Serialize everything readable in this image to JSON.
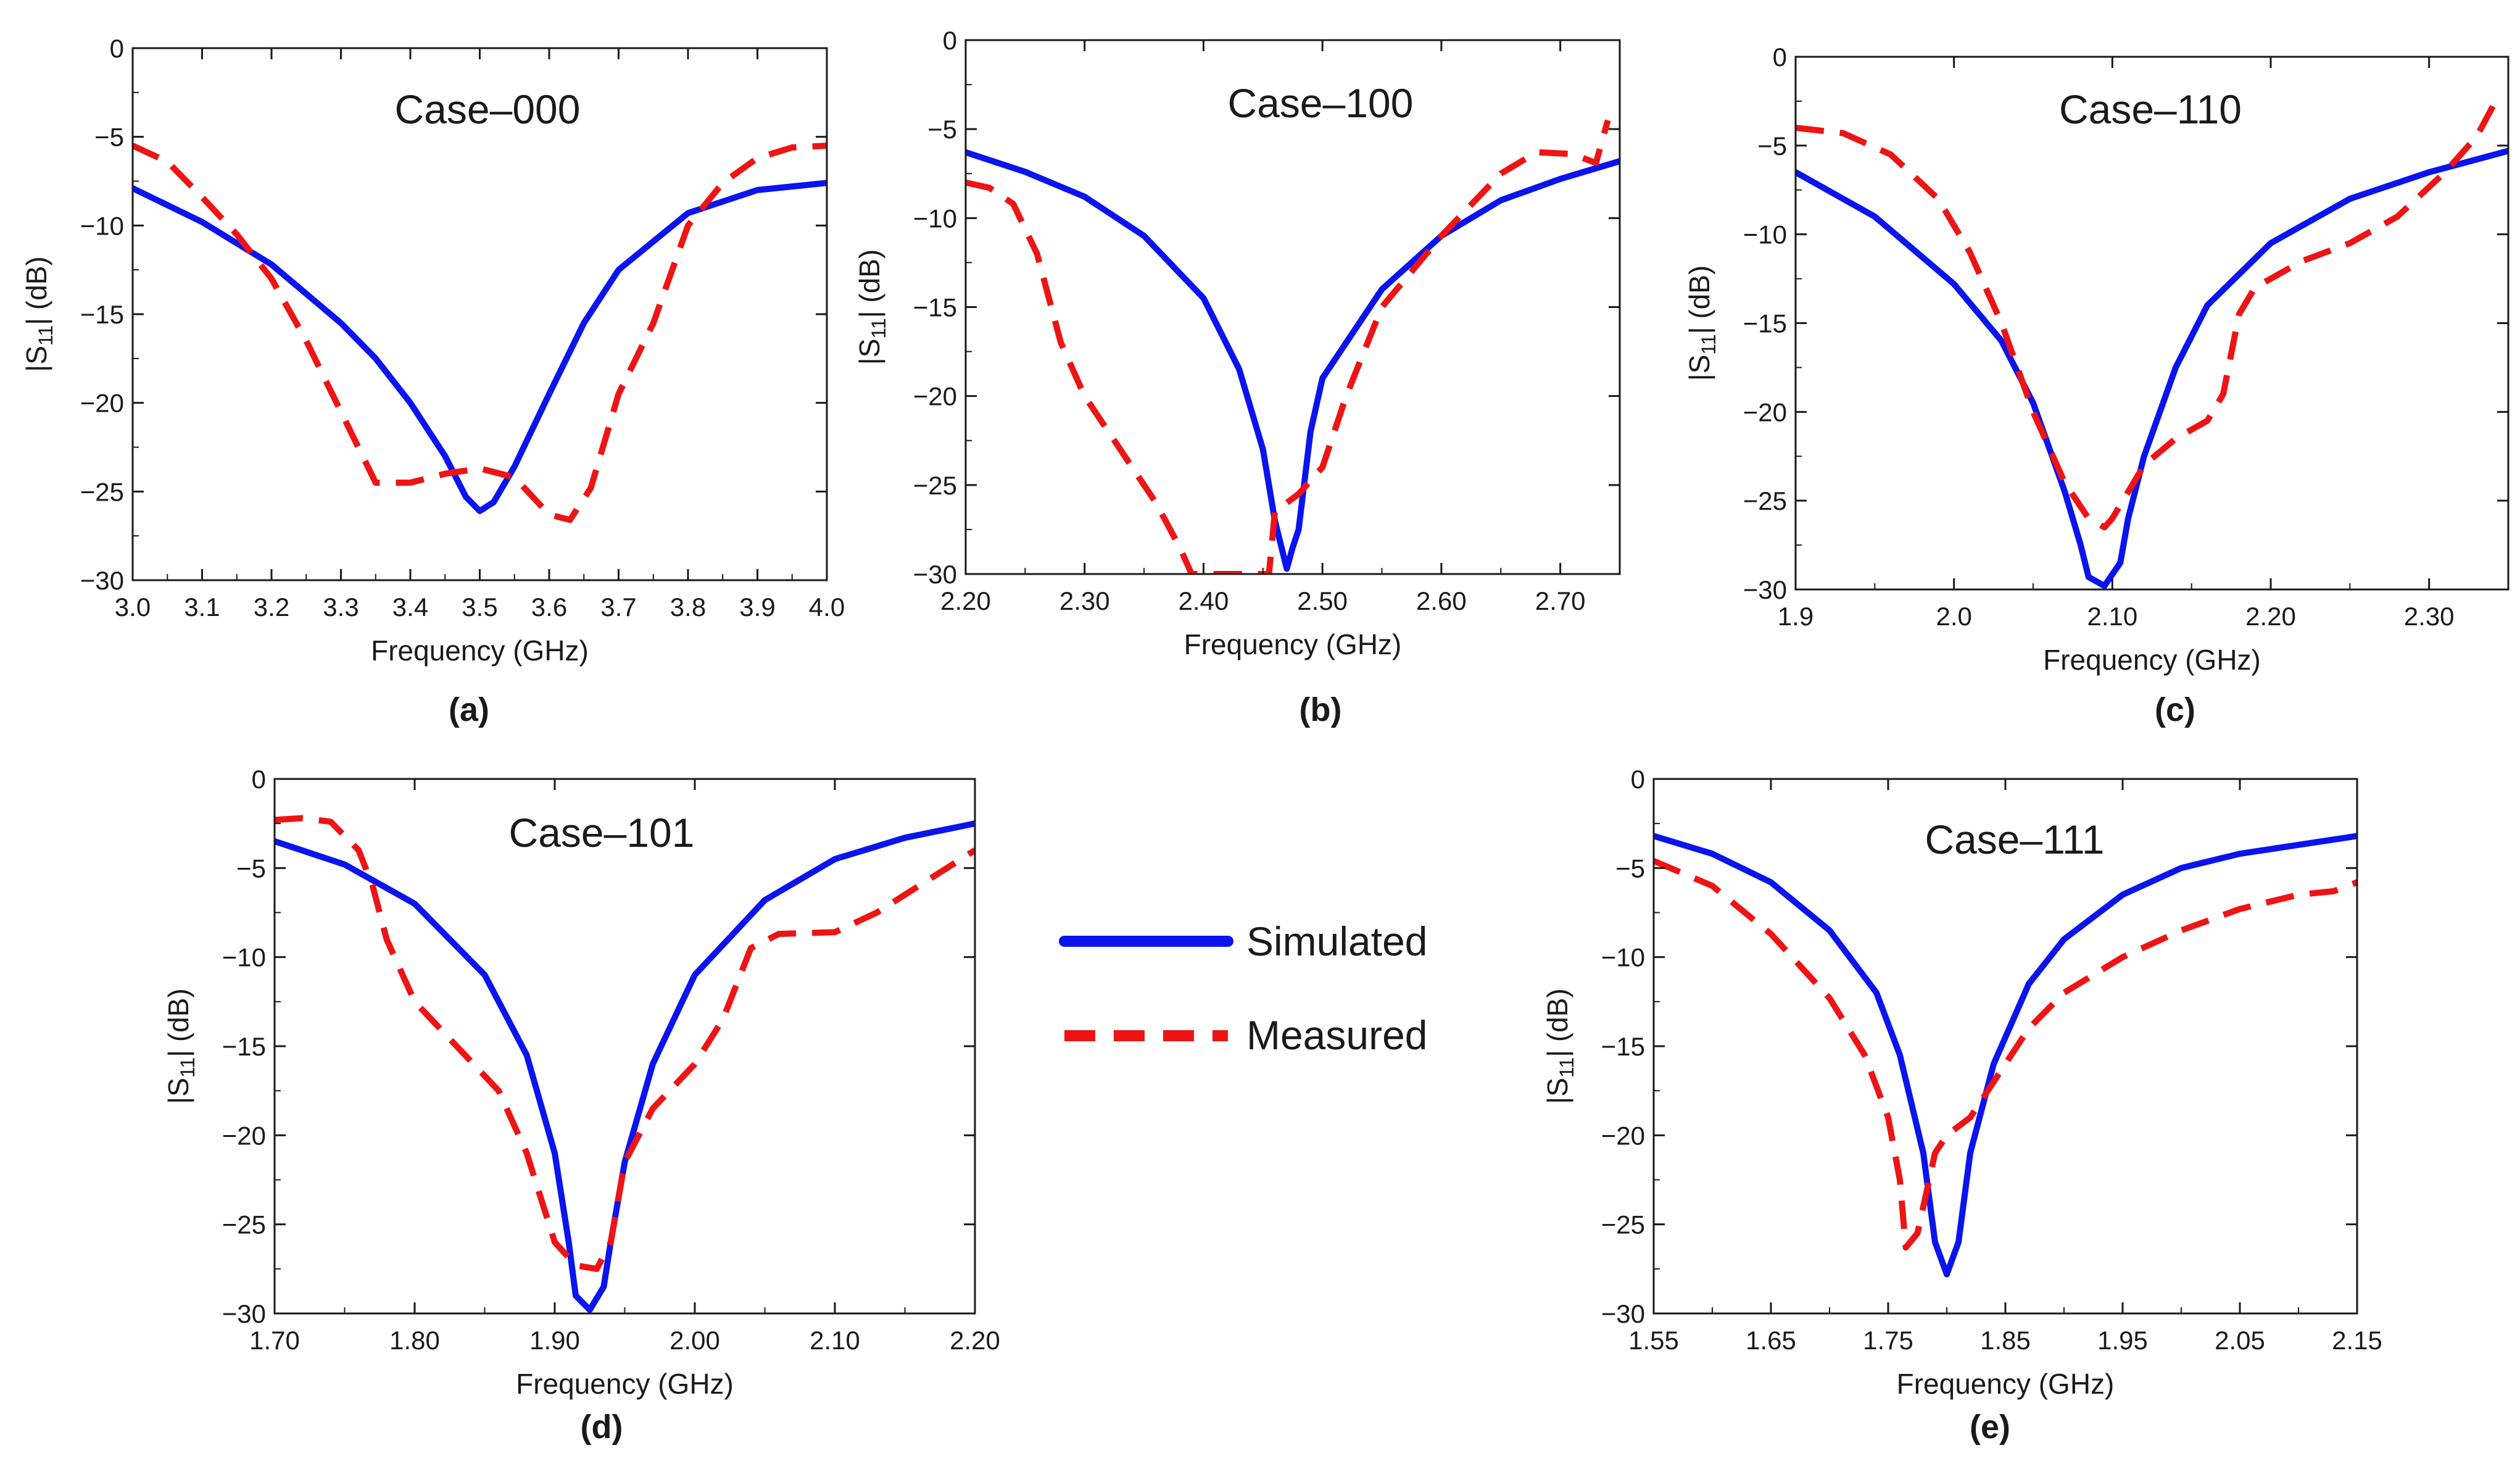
{
  "colors": {
    "simulated": "#0a14ee",
    "measured": "#ee1414",
    "axis": "#1a1a1a"
  },
  "legend": {
    "simulated_label": "Simulated",
    "measured_label": "Measured"
  },
  "chart_data": [
    {
      "type": "line",
      "panel_label": "(a)",
      "title": "Case–000",
      "xlabel": "Frequency (GHz)",
      "ylabel": "|S11| (dB)",
      "xlim": [
        3.0,
        4.0
      ],
      "ylim": [
        -30,
        0
      ],
      "xticks": [
        3.0,
        3.1,
        3.2,
        3.3,
        3.4,
        3.5,
        3.6,
        3.7,
        3.8,
        3.9,
        4.0
      ],
      "xtick_labels": [
        "3.0",
        "3.1",
        "3.2",
        "3.3",
        "3.4",
        "3.5",
        "3.6",
        "3.7",
        "3.8",
        "3.9",
        "4.0"
      ],
      "yticks": [
        0,
        -5,
        -10,
        -15,
        -20,
        -25,
        -30
      ],
      "ytick_labels": [
        "0",
        "−5",
        "−10",
        "−15",
        "−20",
        "−25",
        "−30"
      ],
      "grid": false,
      "series": [
        {
          "name": "Simulated",
          "x": [
            3.0,
            3.1,
            3.2,
            3.3,
            3.35,
            3.4,
            3.45,
            3.48,
            3.5,
            3.52,
            3.55,
            3.6,
            3.65,
            3.7,
            3.8,
            3.9,
            4.0
          ],
          "y": [
            -7.9,
            -9.8,
            -12.2,
            -15.5,
            -17.5,
            -20.0,
            -23.0,
            -25.3,
            -26.1,
            -25.6,
            -23.6,
            -19.5,
            -15.5,
            -12.5,
            -9.3,
            -8.0,
            -7.6
          ]
        },
        {
          "name": "Measured",
          "x": [
            3.0,
            3.05,
            3.1,
            3.15,
            3.2,
            3.25,
            3.3,
            3.35,
            3.4,
            3.45,
            3.5,
            3.55,
            3.6,
            3.63,
            3.66,
            3.7,
            3.75,
            3.8,
            3.85,
            3.9,
            3.95,
            4.0
          ],
          "y": [
            -5.5,
            -6.4,
            -8.4,
            -10.5,
            -13.0,
            -16.5,
            -20.5,
            -24.5,
            -24.5,
            -24.0,
            -23.7,
            -24.2,
            -26.3,
            -26.6,
            -24.8,
            -19.5,
            -15.5,
            -10.0,
            -7.6,
            -6.2,
            -5.6,
            -5.5
          ]
        }
      ]
    },
    {
      "type": "line",
      "panel_label": "(b)",
      "title": "Case–100",
      "xlabel": "Frequency (GHz)",
      "ylabel": "|S11| (dB)",
      "xlim": [
        2.2,
        2.75
      ],
      "ylim": [
        -30,
        0
      ],
      "xticks": [
        2.2,
        2.3,
        2.4,
        2.5,
        2.6,
        2.7
      ],
      "xtick_labels": [
        "2.20",
        "2.30",
        "2.40",
        "2.50",
        "2.60",
        "2.70"
      ],
      "yticks": [
        0,
        -5,
        -10,
        -15,
        -20,
        -25,
        -30
      ],
      "ytick_labels": [
        "0",
        "−5",
        "−10",
        "−15",
        "−20",
        "−25",
        "−30"
      ],
      "grid": false,
      "series": [
        {
          "name": "Simulated",
          "x": [
            2.2,
            2.25,
            2.3,
            2.35,
            2.4,
            2.43,
            2.45,
            2.46,
            2.47,
            2.475,
            2.48,
            2.49,
            2.5,
            2.55,
            2.6,
            2.65,
            2.7,
            2.75
          ],
          "y": [
            -6.3,
            -7.4,
            -8.8,
            -11.0,
            -14.5,
            -18.5,
            -23.0,
            -27.0,
            -29.7,
            -28.5,
            -27.5,
            -22.0,
            -19.0,
            -14.0,
            -11.0,
            -9.0,
            -7.8,
            -6.8
          ]
        },
        {
          "name": "Measured",
          "x": [
            2.2,
            2.22,
            2.24,
            2.26,
            2.28,
            2.3,
            2.32,
            2.34,
            2.36,
            2.38,
            2.39,
            2.4,
            2.455,
            2.46,
            2.48,
            2.5,
            2.52,
            2.55,
            2.6,
            2.65,
            2.68,
            2.71,
            2.73,
            2.74
          ],
          "y": [
            -8.0,
            -8.3,
            -9.2,
            -12.0,
            -17.0,
            -20.0,
            -22.0,
            -24.0,
            -26.0,
            -28.5,
            -30.0,
            -30.0,
            -30.0,
            -26.5,
            -25.5,
            -24.0,
            -20.0,
            -15.0,
            -11.0,
            -7.5,
            -6.3,
            -6.4,
            -6.9,
            -4.5
          ]
        }
      ]
    },
    {
      "type": "line",
      "panel_label": "(c)",
      "title": "Case–110",
      "xlabel": "Frequency (GHz)",
      "ylabel": "|S11| (dB)",
      "xlim": [
        1.9,
        2.35
      ],
      "ylim": [
        -30,
        0
      ],
      "xticks": [
        1.9,
        2.0,
        2.1,
        2.2,
        2.3
      ],
      "xtick_labels": [
        "1.9",
        "2.0",
        "2.10",
        "2.20",
        "2.30"
      ],
      "yticks": [
        0,
        -5,
        -10,
        -15,
        -20,
        -25,
        -30
      ],
      "ytick_labels": [
        "0",
        "−5",
        "−10",
        "−15",
        "−20",
        "−25",
        "−30"
      ],
      "grid": false,
      "series": [
        {
          "name": "Simulated",
          "x": [
            1.9,
            1.95,
            2.0,
            2.03,
            2.05,
            2.07,
            2.08,
            2.085,
            2.095,
            2.105,
            2.11,
            2.12,
            2.14,
            2.16,
            2.2,
            2.25,
            2.3,
            2.35
          ],
          "y": [
            -6.5,
            -9.0,
            -12.8,
            -16.0,
            -19.5,
            -24.5,
            -27.5,
            -29.3,
            -29.8,
            -28.5,
            -26.0,
            -22.5,
            -17.5,
            -14.0,
            -10.5,
            -8.0,
            -6.5,
            -5.3
          ]
        },
        {
          "name": "Measured",
          "x": [
            1.9,
            1.93,
            1.96,
            1.99,
            2.01,
            2.03,
            2.05,
            2.07,
            2.085,
            2.095,
            2.1,
            2.12,
            2.14,
            2.16,
            2.17,
            2.18,
            2.19,
            2.22,
            2.25,
            2.28,
            2.31,
            2.33,
            2.345
          ],
          "y": [
            -4.0,
            -4.3,
            -5.5,
            -8.0,
            -11.0,
            -15.0,
            -20.0,
            -24.0,
            -26.0,
            -26.5,
            -26.0,
            -23.0,
            -21.5,
            -20.5,
            -19.0,
            -14.5,
            -13.0,
            -11.5,
            -10.5,
            -9.0,
            -6.5,
            -4.5,
            -2.0
          ]
        }
      ]
    },
    {
      "type": "line",
      "panel_label": "(d)",
      "title": "Case–101",
      "xlabel": "Frequency (GHz)",
      "ylabel": "|S11| (dB)",
      "xlim": [
        1.7,
        2.2
      ],
      "ylim": [
        -30,
        0
      ],
      "xticks": [
        1.7,
        1.8,
        1.9,
        2.0,
        2.1,
        2.2
      ],
      "xtick_labels": [
        "1.70",
        "1.80",
        "1.90",
        "2.00",
        "2.10",
        "2.20"
      ],
      "yticks": [
        0,
        -5,
        -10,
        -15,
        -20,
        -25,
        -30
      ],
      "ytick_labels": [
        "0",
        "−5",
        "−10",
        "−15",
        "−20",
        "−25",
        "−30"
      ],
      "grid": false,
      "series": [
        {
          "name": "Simulated",
          "x": [
            1.7,
            1.75,
            1.8,
            1.85,
            1.88,
            1.9,
            1.91,
            1.915,
            1.925,
            1.935,
            1.94,
            1.95,
            1.97,
            2.0,
            2.05,
            2.1,
            2.15,
            2.2
          ],
          "y": [
            -3.5,
            -4.8,
            -7.0,
            -11.0,
            -15.5,
            -21.0,
            -26.0,
            -29.0,
            -29.8,
            -28.5,
            -26.0,
            -21.5,
            -16.0,
            -11.0,
            -6.8,
            -4.5,
            -3.3,
            -2.5
          ]
        },
        {
          "name": "Measured",
          "x": [
            1.7,
            1.72,
            1.74,
            1.76,
            1.77,
            1.78,
            1.8,
            1.83,
            1.86,
            1.88,
            1.9,
            1.915,
            1.93,
            1.94,
            1.95,
            1.97,
            2.0,
            2.02,
            2.04,
            2.06,
            2.1,
            2.13,
            2.16,
            2.2
          ],
          "y": [
            -2.3,
            -2.2,
            -2.4,
            -4.0,
            -6.0,
            -9.0,
            -12.5,
            -15.0,
            -17.5,
            -21.0,
            -26.0,
            -27.3,
            -27.5,
            -26.0,
            -21.5,
            -18.5,
            -16.0,
            -13.5,
            -9.5,
            -8.7,
            -8.6,
            -7.5,
            -6.0,
            -4.0
          ]
        }
      ]
    },
    {
      "type": "line",
      "panel_label": "(e)",
      "title": "Case–111",
      "xlabel": "Frequency (GHz)",
      "ylabel": "|S11| (dB)",
      "xlim": [
        1.55,
        2.15
      ],
      "ylim": [
        -30,
        0
      ],
      "xticks": [
        1.55,
        1.65,
        1.75,
        1.85,
        1.95,
        2.05,
        2.15
      ],
      "xtick_labels": [
        "1.55",
        "1.65",
        "1.75",
        "1.85",
        "1.95",
        "2.05",
        "2.15"
      ],
      "yticks": [
        0,
        -5,
        -10,
        -15,
        -20,
        -25,
        -30
      ],
      "ytick_labels": [
        "0",
        "−5",
        "−10",
        "−15",
        "−20",
        "−25",
        "−30"
      ],
      "grid": false,
      "series": [
        {
          "name": "Simulated",
          "x": [
            1.55,
            1.6,
            1.65,
            1.7,
            1.74,
            1.76,
            1.78,
            1.79,
            1.8,
            1.81,
            1.82,
            1.84,
            1.87,
            1.9,
            1.95,
            2.0,
            2.05,
            2.1,
            2.15
          ],
          "y": [
            -3.2,
            -4.2,
            -5.8,
            -8.5,
            -12.0,
            -15.5,
            -21.0,
            -26.0,
            -27.8,
            -26.0,
            -21.0,
            -16.0,
            -11.5,
            -9.0,
            -6.5,
            -5.0,
            -4.2,
            -3.7,
            -3.2
          ]
        },
        {
          "name": "Measured",
          "x": [
            1.55,
            1.6,
            1.65,
            1.7,
            1.73,
            1.75,
            1.76,
            1.765,
            1.775,
            1.785,
            1.79,
            1.8,
            1.82,
            1.84,
            1.87,
            1.9,
            1.95,
            2.0,
            2.05,
            2.1,
            2.13,
            2.15
          ],
          "y": [
            -4.6,
            -6.0,
            -8.7,
            -12.3,
            -15.5,
            -19.0,
            -22.5,
            -26.3,
            -25.5,
            -22.5,
            -21.0,
            -20.0,
            -19.0,
            -17.0,
            -14.0,
            -12.0,
            -10.0,
            -8.5,
            -7.3,
            -6.5,
            -6.3,
            -5.8
          ]
        }
      ]
    }
  ]
}
